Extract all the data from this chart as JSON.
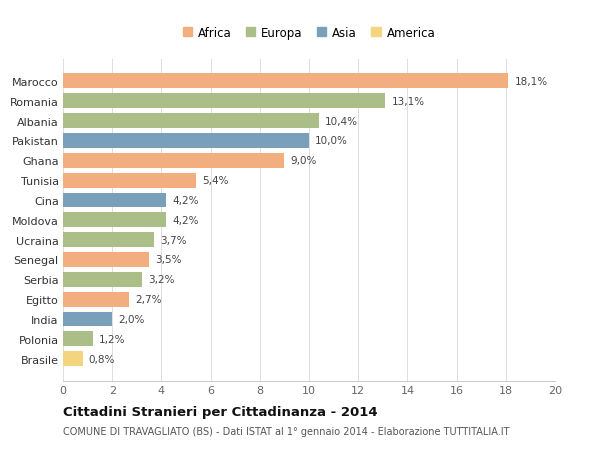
{
  "categories": [
    "Brasile",
    "Polonia",
    "India",
    "Egitto",
    "Serbia",
    "Senegal",
    "Ucraina",
    "Moldova",
    "Cina",
    "Tunisia",
    "Ghana",
    "Pakistan",
    "Albania",
    "Romania",
    "Marocco"
  ],
  "values": [
    0.8,
    1.2,
    2.0,
    2.7,
    3.2,
    3.5,
    3.7,
    4.2,
    4.2,
    5.4,
    9.0,
    10.0,
    10.4,
    13.1,
    18.1
  ],
  "labels": [
    "0,8%",
    "1,2%",
    "2,0%",
    "2,7%",
    "3,2%",
    "3,5%",
    "3,7%",
    "4,2%",
    "4,2%",
    "5,4%",
    "9,0%",
    "10,0%",
    "10,4%",
    "13,1%",
    "18,1%"
  ],
  "continents": [
    "America",
    "Europa",
    "Asia",
    "Africa",
    "Europa",
    "Africa",
    "Europa",
    "Europa",
    "Asia",
    "Africa",
    "Africa",
    "Asia",
    "Europa",
    "Europa",
    "Africa"
  ],
  "colors": {
    "Africa": "#F2AE7E",
    "Europa": "#ABBE87",
    "Asia": "#7A9FBA",
    "America": "#F2D57E"
  },
  "legend_order": [
    "Africa",
    "Europa",
    "Asia",
    "America"
  ],
  "title": "Cittadini Stranieri per Cittadinanza - 2014",
  "subtitle": "COMUNE DI TRAVAGLIATO (BS) - Dati ISTAT al 1° gennaio 2014 - Elaborazione TUTTITALIA.IT",
  "xlim": [
    0,
    20
  ],
  "xticks": [
    0,
    2,
    4,
    6,
    8,
    10,
    12,
    14,
    16,
    18,
    20
  ],
  "background_color": "#FFFFFF",
  "grid_color": "#DDDDDD",
  "bar_height": 0.75
}
